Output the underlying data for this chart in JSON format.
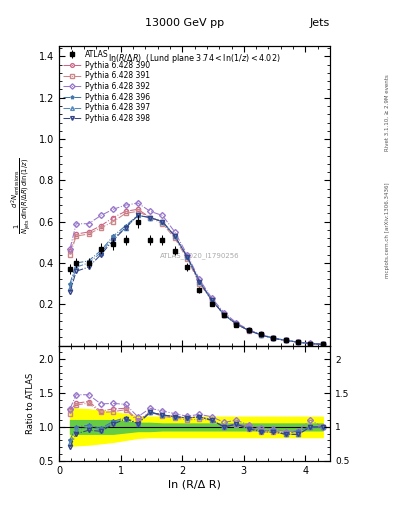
{
  "title_top": "13000 GeV pp",
  "title_right": "Jets",
  "plot_title": "ln(R/Δ R)  (Lund plane 3.74<ln(1/z)<4.02)",
  "watermark": "ATLAS_2020_I1790256",
  "rivet_label": "Rivet 3.1.10, ≥ 2.9M events",
  "mcplots_label": "mcplots.cern.ch [arXiv:1306.3436]",
  "xlabel": "ln (R/Δ R)",
  "ylim_main": [
    0.0,
    1.45
  ],
  "ylim_ratio": [
    0.5,
    2.2
  ],
  "yticks_main": [
    0.2,
    0.4,
    0.6,
    0.8,
    1.0,
    1.2,
    1.4
  ],
  "yticks_ratio": [
    0.5,
    1.0,
    1.5,
    2.0
  ],
  "xlim": [
    0.0,
    4.4
  ],
  "xticks": [
    0,
    1,
    2,
    3,
    4
  ],
  "atlas_x": [
    0.18,
    0.28,
    0.48,
    0.68,
    0.88,
    1.08,
    1.28,
    1.48,
    1.68,
    1.88,
    2.08,
    2.28,
    2.48,
    2.68,
    2.88,
    3.08,
    3.28,
    3.48,
    3.68,
    3.88,
    4.08,
    4.28
  ],
  "atlas_y": [
    0.37,
    0.4,
    0.4,
    0.47,
    0.49,
    0.51,
    0.6,
    0.51,
    0.51,
    0.46,
    0.38,
    0.27,
    0.2,
    0.15,
    0.1,
    0.075,
    0.055,
    0.038,
    0.028,
    0.018,
    0.01,
    0.006
  ],
  "atlas_yerr": [
    0.025,
    0.025,
    0.022,
    0.025,
    0.025,
    0.025,
    0.03,
    0.025,
    0.025,
    0.022,
    0.018,
    0.013,
    0.01,
    0.008,
    0.006,
    0.005,
    0.004,
    0.003,
    0.002,
    0.0015,
    0.001,
    0.0008
  ],
  "series": [
    {
      "label": "Pythia 6.428 390",
      "color": "#cc6688",
      "mfc": "none",
      "marker": "o",
      "ls": "-.",
      "x": [
        0.18,
        0.28,
        0.48,
        0.68,
        0.88,
        1.08,
        1.28,
        1.48,
        1.68,
        1.88,
        2.08,
        2.28,
        2.48,
        2.68,
        2.88,
        3.08,
        3.28,
        3.48,
        3.68,
        3.88,
        4.08,
        4.28
      ],
      "y": [
        0.46,
        0.54,
        0.55,
        0.58,
        0.62,
        0.65,
        0.66,
        0.62,
        0.6,
        0.53,
        0.43,
        0.31,
        0.22,
        0.15,
        0.105,
        0.075,
        0.052,
        0.036,
        0.025,
        0.017,
        0.01,
        0.006
      ]
    },
    {
      "label": "Pythia 6.428 391",
      "color": "#cc8888",
      "mfc": "none",
      "marker": "s",
      "ls": "-.",
      "x": [
        0.18,
        0.28,
        0.48,
        0.68,
        0.88,
        1.08,
        1.28,
        1.48,
        1.68,
        1.88,
        2.08,
        2.28,
        2.48,
        2.68,
        2.88,
        3.08,
        3.28,
        3.48,
        3.68,
        3.88,
        4.08,
        4.28
      ],
      "y": [
        0.44,
        0.53,
        0.54,
        0.57,
        0.6,
        0.64,
        0.65,
        0.62,
        0.59,
        0.52,
        0.42,
        0.3,
        0.22,
        0.15,
        0.103,
        0.073,
        0.051,
        0.035,
        0.025,
        0.016,
        0.01,
        0.006
      ]
    },
    {
      "label": "Pythia 6.428 392",
      "color": "#9977cc",
      "mfc": "none",
      "marker": "D",
      "ls": "-.",
      "x": [
        0.18,
        0.28,
        0.48,
        0.68,
        0.88,
        1.08,
        1.28,
        1.48,
        1.68,
        1.88,
        2.08,
        2.28,
        2.48,
        2.68,
        2.88,
        3.08,
        3.28,
        3.48,
        3.68,
        3.88,
        4.08,
        4.28
      ],
      "y": [
        0.47,
        0.59,
        0.59,
        0.63,
        0.66,
        0.68,
        0.69,
        0.65,
        0.63,
        0.55,
        0.44,
        0.32,
        0.23,
        0.16,
        0.11,
        0.077,
        0.054,
        0.037,
        0.026,
        0.017,
        0.011,
        0.006
      ]
    },
    {
      "label": "Pythia 6.428 396",
      "color": "#4477aa",
      "mfc": "none",
      "marker": "*",
      "ls": "-.",
      "x": [
        0.18,
        0.28,
        0.48,
        0.68,
        0.88,
        1.08,
        1.28,
        1.48,
        1.68,
        1.88,
        2.08,
        2.28,
        2.48,
        2.68,
        2.88,
        3.08,
        3.28,
        3.48,
        3.68,
        3.88,
        4.08,
        4.28
      ],
      "y": [
        0.3,
        0.4,
        0.41,
        0.46,
        0.53,
        0.58,
        0.63,
        0.62,
        0.6,
        0.53,
        0.43,
        0.31,
        0.22,
        0.15,
        0.104,
        0.074,
        0.052,
        0.036,
        0.025,
        0.017,
        0.01,
        0.006
      ]
    },
    {
      "label": "Pythia 6.428 397",
      "color": "#5588bb",
      "mfc": "none",
      "marker": "^",
      "ls": "-.",
      "x": [
        0.18,
        0.28,
        0.48,
        0.68,
        0.88,
        1.08,
        1.28,
        1.48,
        1.68,
        1.88,
        2.08,
        2.28,
        2.48,
        2.68,
        2.88,
        3.08,
        3.28,
        3.48,
        3.68,
        3.88,
        4.08,
        4.28
      ],
      "y": [
        0.28,
        0.38,
        0.4,
        0.45,
        0.52,
        0.57,
        0.63,
        0.62,
        0.6,
        0.53,
        0.43,
        0.31,
        0.22,
        0.15,
        0.104,
        0.074,
        0.052,
        0.036,
        0.025,
        0.016,
        0.01,
        0.006
      ]
    },
    {
      "label": "Pythia 6.428 398",
      "color": "#334488",
      "mfc": "none",
      "marker": "v",
      "ls": "-.",
      "x": [
        0.18,
        0.28,
        0.48,
        0.68,
        0.88,
        1.08,
        1.28,
        1.48,
        1.68,
        1.88,
        2.08,
        2.28,
        2.48,
        2.68,
        2.88,
        3.08,
        3.28,
        3.48,
        3.68,
        3.88,
        4.08,
        4.28
      ],
      "y": [
        0.26,
        0.36,
        0.38,
        0.44,
        0.51,
        0.57,
        0.63,
        0.62,
        0.6,
        0.53,
        0.43,
        0.31,
        0.22,
        0.15,
        0.104,
        0.073,
        0.051,
        0.035,
        0.025,
        0.016,
        0.01,
        0.006
      ]
    }
  ],
  "band_green_lo": [
    0.9,
    0.9,
    0.9,
    0.9,
    0.9,
    0.92,
    0.94,
    0.94,
    0.95,
    0.95,
    0.95,
    0.95,
    0.95,
    0.95,
    0.95,
    0.95,
    0.95,
    0.95,
    0.95,
    0.95,
    0.95,
    0.95
  ],
  "band_green_hi": [
    1.1,
    1.1,
    1.1,
    1.1,
    1.1,
    1.08,
    1.06,
    1.06,
    1.05,
    1.05,
    1.05,
    1.05,
    1.05,
    1.05,
    1.05,
    1.05,
    1.05,
    1.05,
    1.05,
    1.05,
    1.05,
    1.05
  ],
  "band_yellow_lo": [
    0.72,
    0.73,
    0.74,
    0.76,
    0.78,
    0.81,
    0.84,
    0.85,
    0.85,
    0.85,
    0.85,
    0.85,
    0.85,
    0.85,
    0.85,
    0.85,
    0.85,
    0.85,
    0.85,
    0.85,
    0.85,
    0.85
  ],
  "band_yellow_hi": [
    1.28,
    1.27,
    1.26,
    1.24,
    1.22,
    1.19,
    1.16,
    1.15,
    1.15,
    1.15,
    1.15,
    1.15,
    1.15,
    1.15,
    1.15,
    1.15,
    1.15,
    1.15,
    1.15,
    1.15,
    1.15,
    1.15
  ]
}
